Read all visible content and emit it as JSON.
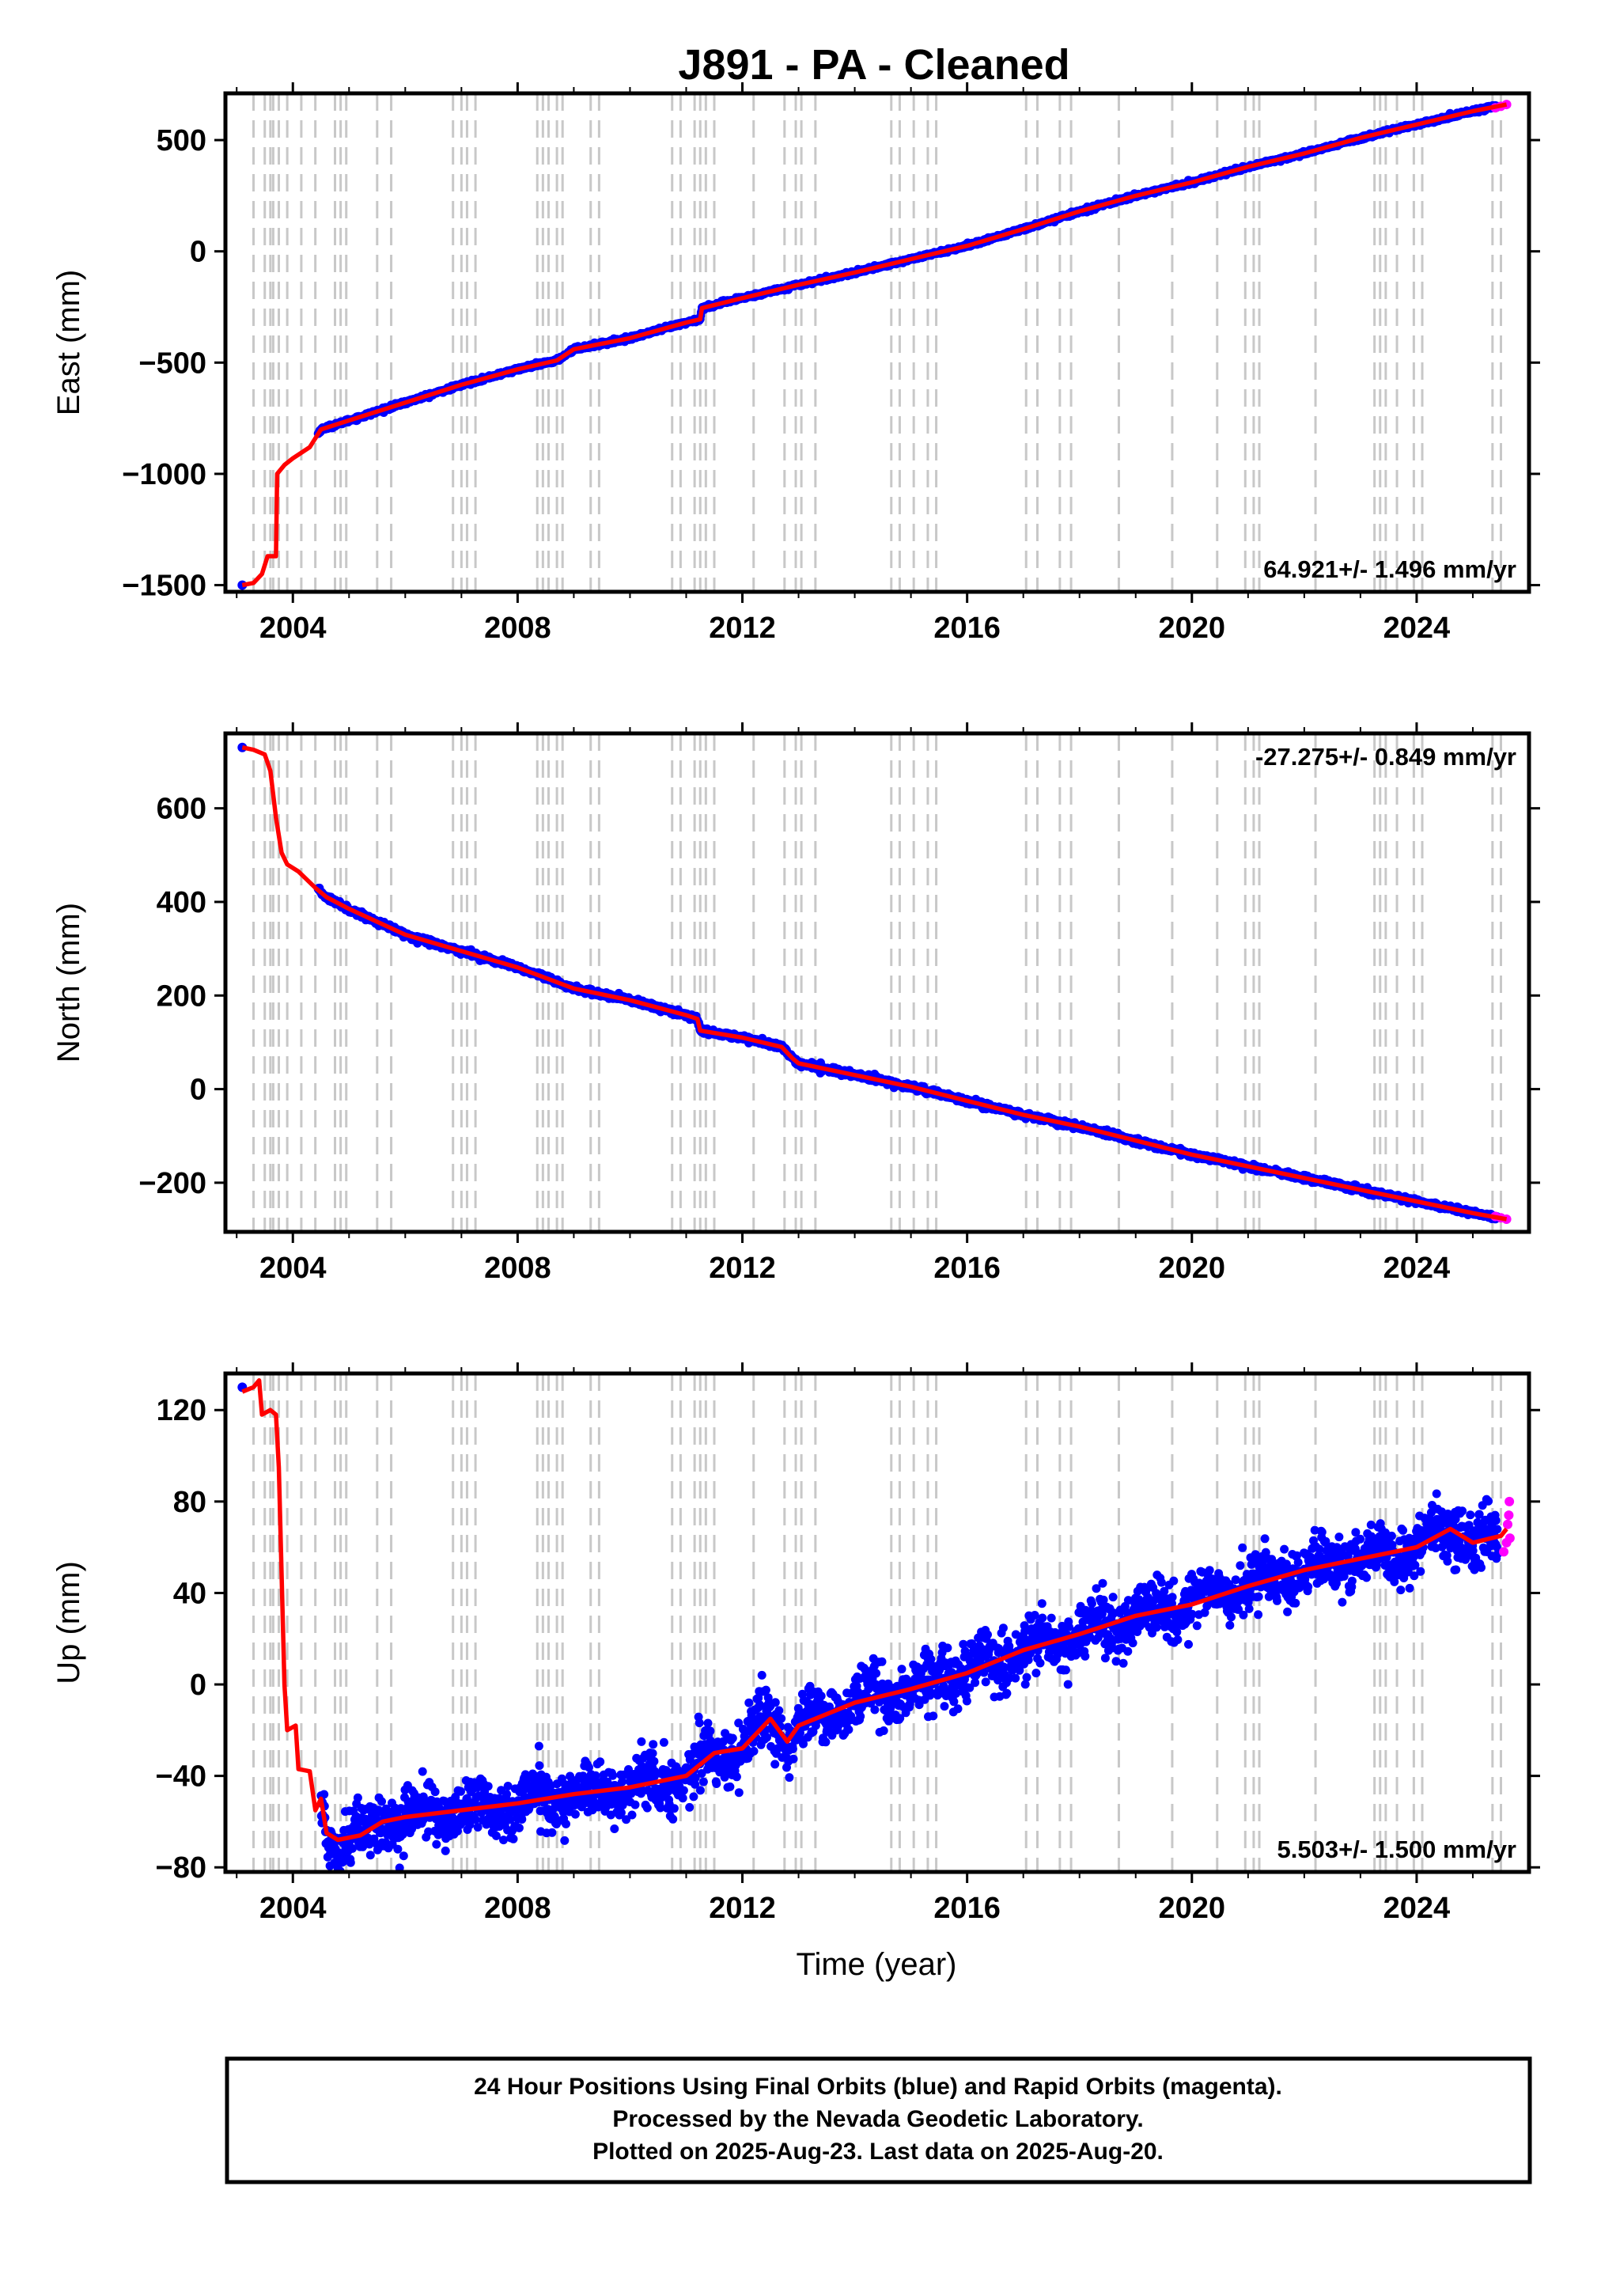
{
  "figure": {
    "title": "J891  - PA - Cleaned",
    "xlabel": "Time (year)",
    "colors": {
      "final_orbits": "#0000ff",
      "rapid_orbits": "#ff00ff",
      "model": "#ff0000",
      "equipment_changes": "#c8c8c8"
    },
    "notes": [
      "24 Hour Positions Using Final Orbits (blue) and Rapid Orbits (magenta).",
      "Processed by the Nevada Geodetic Laboratory.",
      "Plotted on 2025-Aug-23. Last data on 2025-Aug-20."
    ]
  },
  "chart_data": [
    {
      "type": "scatter",
      "ylabel": "East (mm)",
      "rate_text": "64.921+/- 1.496 mm/yr",
      "rate_position": "bottom-right",
      "xlim": [
        2002.8,
        2026.0
      ],
      "ylim": [
        -1530,
        710
      ],
      "x_ticks": [
        2004,
        2008,
        2012,
        2016,
        2020,
        2024
      ],
      "y_ticks": [
        500,
        0,
        -500,
        -1000,
        -1500
      ],
      "x_tick_labels": [
        "2004",
        "2008",
        "2012",
        "2016",
        "2020",
        "2024"
      ],
      "y_tick_labels": [
        "500",
        "0",
        "−500",
        "−1000",
        "−1500"
      ],
      "model_steps": [
        [
          2003.1,
          -1500
        ],
        [
          2003.3,
          -1490
        ],
        [
          2003.45,
          -1450
        ],
        [
          2003.55,
          -1370
        ],
        [
          2003.7,
          -1370
        ],
        [
          2003.72,
          -1000
        ],
        [
          2003.85,
          -960
        ],
        [
          2004.0,
          -930
        ],
        [
          2004.3,
          -880
        ],
        [
          2004.5,
          -800
        ],
        [
          2005.0,
          -760
        ],
        [
          2006.0,
          -680
        ],
        [
          2007.0,
          -600
        ],
        [
          2008.0,
          -530
        ],
        [
          2008.7,
          -490
        ],
        [
          2009.0,
          -440
        ],
        [
          2010.0,
          -390
        ],
        [
          2011.0,
          -320
        ],
        [
          2011.25,
          -305
        ],
        [
          2011.28,
          -255
        ],
        [
          2012.0,
          -210
        ],
        [
          2013.0,
          -150
        ],
        [
          2014.0,
          -95
        ],
        [
          2015.0,
          -35
        ],
        [
          2016.0,
          25
        ],
        [
          2017.0,
          100
        ],
        [
          2018.0,
          180
        ],
        [
          2019.0,
          250
        ],
        [
          2020.0,
          310
        ],
        [
          2021.0,
          380
        ],
        [
          2022.0,
          440
        ],
        [
          2023.0,
          510
        ],
        [
          2024.0,
          570
        ],
        [
          2025.0,
          630
        ],
        [
          2025.6,
          660
        ]
      ],
      "rapid_points": [
        [
          2025.4,
          645
        ],
        [
          2025.5,
          652
        ],
        [
          2025.6,
          660
        ]
      ],
      "first_point": [
        2003.1,
        -1500
      ],
      "scatter_noise": 4
    },
    {
      "type": "scatter",
      "ylabel": "North (mm)",
      "rate_text": "-27.275+/- 0.849 mm/yr",
      "rate_position": "top-right",
      "xlim": [
        2002.8,
        2026.0
      ],
      "ylim": [
        -305,
        760
      ],
      "x_ticks": [
        2004,
        2008,
        2012,
        2016,
        2020,
        2024
      ],
      "y_ticks": [
        600,
        400,
        200,
        0,
        -200
      ],
      "x_tick_labels": [
        "2004",
        "2008",
        "2012",
        "2016",
        "2020",
        "2024"
      ],
      "y_tick_labels": [
        "600",
        "400",
        "200",
        "0",
        "−200"
      ],
      "model_steps": [
        [
          2003.1,
          730
        ],
        [
          2003.3,
          725
        ],
        [
          2003.5,
          715
        ],
        [
          2003.6,
          680
        ],
        [
          2003.7,
          580
        ],
        [
          2003.8,
          505
        ],
        [
          2003.9,
          480
        ],
        [
          2004.1,
          465
        ],
        [
          2004.4,
          430
        ],
        [
          2004.6,
          410
        ],
        [
          2005.0,
          385
        ],
        [
          2006.0,
          330
        ],
        [
          2007.0,
          295
        ],
        [
          2008.0,
          260
        ],
        [
          2009.0,
          215
        ],
        [
          2010.0,
          190
        ],
        [
          2011.0,
          158
        ],
        [
          2011.2,
          150
        ],
        [
          2011.25,
          125
        ],
        [
          2012.0,
          110
        ],
        [
          2012.7,
          90
        ],
        [
          2012.9,
          65
        ],
        [
          2013.0,
          55
        ],
        [
          2014.0,
          30
        ],
        [
          2015.0,
          5
        ],
        [
          2016.0,
          -25
        ],
        [
          2017.0,
          -55
        ],
        [
          2018.0,
          -80
        ],
        [
          2019.0,
          -110
        ],
        [
          2020.0,
          -140
        ],
        [
          2021.0,
          -165
        ],
        [
          2022.0,
          -190
        ],
        [
          2023.0,
          -215
        ],
        [
          2024.0,
          -240
        ],
        [
          2025.0,
          -265
        ],
        [
          2025.6,
          -278
        ]
      ],
      "rapid_points": [
        [
          2025.4,
          -272
        ],
        [
          2025.5,
          -275
        ],
        [
          2025.6,
          -278
        ]
      ],
      "first_point": [
        2003.1,
        730
      ],
      "scatter_noise": 3
    },
    {
      "type": "scatter",
      "ylabel": "Up (mm)",
      "rate_text": "5.503+/- 1.500 mm/yr",
      "rate_position": "bottom-right",
      "xlim": [
        2002.8,
        2026.0
      ],
      "ylim": [
        -82,
        136
      ],
      "x_ticks": [
        2004,
        2008,
        2012,
        2016,
        2020,
        2024
      ],
      "y_ticks": [
        120,
        80,
        40,
        0,
        -40,
        -80
      ],
      "x_tick_labels": [
        "2004",
        "2008",
        "2012",
        "2016",
        "2020",
        "2024"
      ],
      "y_tick_labels": [
        "120",
        "80",
        "40",
        "0",
        "−40",
        "−80"
      ],
      "model_steps": [
        [
          2003.1,
          128
        ],
        [
          2003.3,
          130
        ],
        [
          2003.4,
          133
        ],
        [
          2003.45,
          118
        ],
        [
          2003.6,
          120
        ],
        [
          2003.7,
          118
        ],
        [
          2003.75,
          95
        ],
        [
          2003.85,
          0
        ],
        [
          2003.9,
          -20
        ],
        [
          2004.05,
          -18
        ],
        [
          2004.1,
          -37
        ],
        [
          2004.3,
          -38
        ],
        [
          2004.4,
          -55
        ],
        [
          2004.5,
          -50
        ],
        [
          2004.6,
          -65
        ],
        [
          2004.8,
          -68
        ],
        [
          2005.2,
          -66
        ],
        [
          2005.6,
          -60
        ],
        [
          2006.0,
          -58
        ],
        [
          2007.0,
          -55
        ],
        [
          2008.0,
          -52
        ],
        [
          2009.0,
          -48
        ],
        [
          2010.0,
          -45
        ],
        [
          2011.0,
          -40
        ],
        [
          2011.5,
          -30
        ],
        [
          2012.0,
          -28
        ],
        [
          2012.5,
          -15
        ],
        [
          2012.8,
          -25
        ],
        [
          2013.0,
          -18
        ],
        [
          2014.0,
          -8
        ],
        [
          2015.0,
          -2
        ],
        [
          2016.0,
          5
        ],
        [
          2017.0,
          15
        ],
        [
          2018.0,
          22
        ],
        [
          2019.0,
          30
        ],
        [
          2020.0,
          35
        ],
        [
          2021.0,
          43
        ],
        [
          2022.0,
          50
        ],
        [
          2023.0,
          55
        ],
        [
          2024.0,
          60
        ],
        [
          2024.6,
          68
        ],
        [
          2025.0,
          62
        ],
        [
          2025.5,
          65
        ],
        [
          2025.6,
          68
        ]
      ],
      "rapid_points": [
        [
          2025.55,
          58
        ],
        [
          2025.6,
          62
        ],
        [
          2025.62,
          70
        ],
        [
          2025.64,
          74
        ],
        [
          2025.65,
          80
        ],
        [
          2025.66,
          64
        ]
      ],
      "first_point": [
        2003.1,
        130
      ],
      "scatter_noise": 6,
      "seasonal_amp": 4
    }
  ],
  "equipment_change_epochs": [
    2003.3,
    2003.5,
    2003.6,
    2003.65,
    2003.75,
    2003.9,
    2004.15,
    2004.4,
    2004.75,
    2004.85,
    2004.95,
    2005.5,
    2005.75,
    2006.85,
    2007.0,
    2007.1,
    2007.25,
    2008.35,
    2008.45,
    2008.55,
    2008.7,
    2008.8,
    2009.3,
    2009.45,
    2010.75,
    2010.9,
    2011.15,
    2011.25,
    2011.35,
    2011.5,
    2012.2,
    2012.75,
    2012.95,
    2013.05,
    2013.3,
    2014.65,
    2014.8,
    2015.05,
    2015.3,
    2015.45,
    2017.05,
    2017.25,
    2017.65,
    2017.85,
    2018.7,
    2019.65,
    2020.45,
    2020.95,
    2021.1,
    2021.2,
    2022.2,
    2023.25,
    2023.35,
    2023.45,
    2023.65,
    2023.95,
    2024.1,
    2025.35,
    2025.5
  ]
}
